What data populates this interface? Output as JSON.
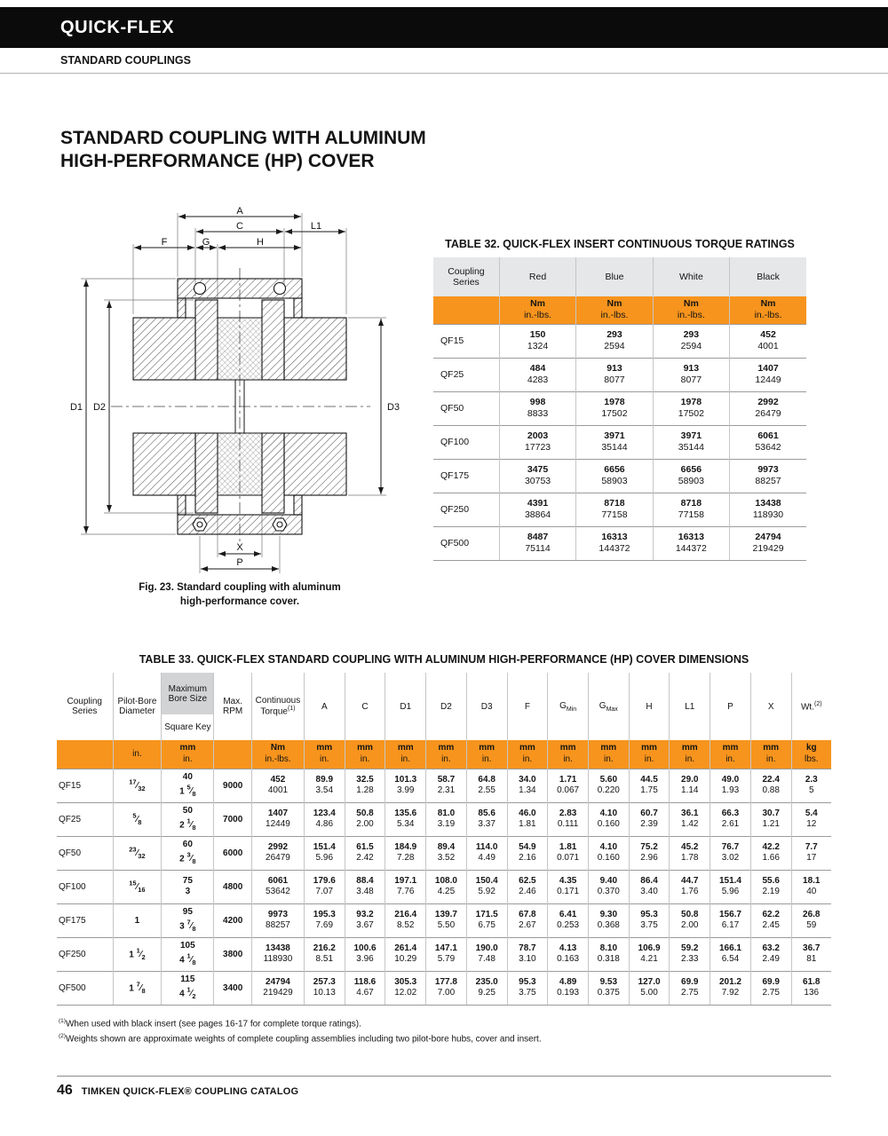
{
  "colors": {
    "accent_orange": "#F7941D",
    "header_gray": "#E6E7E8",
    "box_gray": "#D1D3D4"
  },
  "header": {
    "brand": "QUICK-FLEX",
    "section": "STANDARD COUPLINGS"
  },
  "page_title": {
    "line1": "STANDARD COUPLING WITH ALUMINUM",
    "line2": "HIGH-PERFORMANCE (HP) COVER"
  },
  "figure": {
    "caption_line1": "Fig. 23. Standard coupling with aluminum",
    "caption_line2": "high-performance cover.",
    "labels": {
      "a": "A",
      "c": "C",
      "l1": "L1",
      "f": "F",
      "g": "G",
      "h": "H",
      "d1": "D1",
      "d2": "D2",
      "d3": "D3",
      "x": "X",
      "p": "P"
    }
  },
  "table32": {
    "title": "TABLE 32. QUICK-FLEX INSERT CONTINUOUS TORQUE RATINGS",
    "series_header": "Coupling Series",
    "color_headers": [
      "Red",
      "Blue",
      "White",
      "Black"
    ],
    "unit_top": "Nm",
    "unit_bottom": "in.-lbs.",
    "rows": [
      {
        "series": "QF15",
        "values": [
          [
            "150",
            "1324"
          ],
          [
            "293",
            "2594"
          ],
          [
            "293",
            "2594"
          ],
          [
            "452",
            "4001"
          ]
        ]
      },
      {
        "series": "QF25",
        "values": [
          [
            "484",
            "4283"
          ],
          [
            "913",
            "8077"
          ],
          [
            "913",
            "8077"
          ],
          [
            "1407",
            "12449"
          ]
        ]
      },
      {
        "series": "QF50",
        "values": [
          [
            "998",
            "8833"
          ],
          [
            "1978",
            "17502"
          ],
          [
            "1978",
            "17502"
          ],
          [
            "2992",
            "26479"
          ]
        ]
      },
      {
        "series": "QF100",
        "values": [
          [
            "2003",
            "17723"
          ],
          [
            "3971",
            "35144"
          ],
          [
            "3971",
            "35144"
          ],
          [
            "6061",
            "53642"
          ]
        ]
      },
      {
        "series": "QF175",
        "values": [
          [
            "3475",
            "30753"
          ],
          [
            "6656",
            "58903"
          ],
          [
            "6656",
            "58903"
          ],
          [
            "9973",
            "88257"
          ]
        ]
      },
      {
        "series": "QF250",
        "values": [
          [
            "4391",
            "38864"
          ],
          [
            "8718",
            "77158"
          ],
          [
            "8718",
            "77158"
          ],
          [
            "13438",
            "118930"
          ]
        ]
      },
      {
        "series": "QF500",
        "values": [
          [
            "8487",
            "75114"
          ],
          [
            "16313",
            "144372"
          ],
          [
            "16313",
            "144372"
          ],
          [
            "24794",
            "219429"
          ]
        ]
      }
    ]
  },
  "table33": {
    "title": "TABLE 33. QUICK-FLEX STANDARD COUPLING WITH ALUMINUM HIGH-PERFORMANCE (HP) COVER DIMENSIONS",
    "headers": {
      "series": "Coupling Series",
      "pilot": "Pilot-Bore Diameter",
      "bore_top": "Maximum Bore Size",
      "bore_bottom": "Square Key",
      "rpm": "Max. RPM",
      "torque": "Continuous Torque",
      "torque_sup": "(1)",
      "wt": "Wt.",
      "wt_sup": "(2)"
    },
    "dim_cols": [
      {
        "label": "A"
      },
      {
        "label": "C"
      },
      {
        "label": "D1"
      },
      {
        "label": "D2"
      },
      {
        "label": "D3"
      },
      {
        "label": "F"
      },
      {
        "label": "G",
        "sub": "Min"
      },
      {
        "label": "G",
        "sub": "Max"
      },
      {
        "label": "H"
      },
      {
        "label": "L1"
      },
      {
        "label": "P"
      },
      {
        "label": "X"
      }
    ],
    "units": {
      "pilot": "in.",
      "metric": "mm",
      "imperial": "in.",
      "torque_top": "Nm",
      "torque_bottom": "in.-lbs.",
      "wt_top": "kg",
      "wt_bottom": "lbs."
    },
    "rows": [
      {
        "series": "QF15",
        "pilot_bore": "17/32",
        "max_bore_mm": "40",
        "max_bore_in": "1 5/8",
        "rpm": "9000",
        "torque": [
          "452",
          "4001"
        ],
        "dims": [
          [
            "89.9",
            "3.54"
          ],
          [
            "32.5",
            "1.28"
          ],
          [
            "101.3",
            "3.99"
          ],
          [
            "58.7",
            "2.31"
          ],
          [
            "64.8",
            "2.55"
          ],
          [
            "34.0",
            "1.34"
          ],
          [
            "1.71",
            "0.067"
          ],
          [
            "5.60",
            "0.220"
          ],
          [
            "44.5",
            "1.75"
          ],
          [
            "29.0",
            "1.14"
          ],
          [
            "49.0",
            "1.93"
          ],
          [
            "22.4",
            "0.88"
          ]
        ],
        "wt": [
          "2.3",
          "5"
        ]
      },
      {
        "series": "QF25",
        "pilot_bore": "5/8",
        "max_bore_mm": "50",
        "max_bore_in": "2 1/8",
        "rpm": "7000",
        "torque": [
          "1407",
          "12449"
        ],
        "dims": [
          [
            "123.4",
            "4.86"
          ],
          [
            "50.8",
            "2.00"
          ],
          [
            "135.6",
            "5.34"
          ],
          [
            "81.0",
            "3.19"
          ],
          [
            "85.6",
            "3.37"
          ],
          [
            "46.0",
            "1.81"
          ],
          [
            "2.83",
            "0.111"
          ],
          [
            "4.10",
            "0.160"
          ],
          [
            "60.7",
            "2.39"
          ],
          [
            "36.1",
            "1.42"
          ],
          [
            "66.3",
            "2.61"
          ],
          [
            "30.7",
            "1.21"
          ]
        ],
        "wt": [
          "5.4",
          "12"
        ]
      },
      {
        "series": "QF50",
        "pilot_bore": "23/32",
        "max_bore_mm": "60",
        "max_bore_in": "2 3/8",
        "rpm": "6000",
        "torque": [
          "2992",
          "26479"
        ],
        "dims": [
          [
            "151.4",
            "5.96"
          ],
          [
            "61.5",
            "2.42"
          ],
          [
            "184.9",
            "7.28"
          ],
          [
            "89.4",
            "3.52"
          ],
          [
            "114.0",
            "4.49"
          ],
          [
            "54.9",
            "2.16"
          ],
          [
            "1.81",
            "0.071"
          ],
          [
            "4.10",
            "0.160"
          ],
          [
            "75.2",
            "2.96"
          ],
          [
            "45.2",
            "1.78"
          ],
          [
            "76.7",
            "3.02"
          ],
          [
            "42.2",
            "1.66"
          ]
        ],
        "wt": [
          "7.7",
          "17"
        ]
      },
      {
        "series": "QF100",
        "pilot_bore": "15/16",
        "max_bore_mm": "75",
        "max_bore_in": "3",
        "rpm": "4800",
        "torque": [
          "6061",
          "53642"
        ],
        "dims": [
          [
            "179.6",
            "7.07"
          ],
          [
            "88.4",
            "3.48"
          ],
          [
            "197.1",
            "7.76"
          ],
          [
            "108.0",
            "4.25"
          ],
          [
            "150.4",
            "5.92"
          ],
          [
            "62.5",
            "2.46"
          ],
          [
            "4.35",
            "0.171"
          ],
          [
            "9.40",
            "0.370"
          ],
          [
            "86.4",
            "3.40"
          ],
          [
            "44.7",
            "1.76"
          ],
          [
            "151.4",
            "5.96"
          ],
          [
            "55.6",
            "2.19"
          ]
        ],
        "wt": [
          "18.1",
          "40"
        ]
      },
      {
        "series": "QF175",
        "pilot_bore": "1",
        "max_bore_mm": "95",
        "max_bore_in": "3 7/8",
        "rpm": "4200",
        "torque": [
          "9973",
          "88257"
        ],
        "dims": [
          [
            "195.3",
            "7.69"
          ],
          [
            "93.2",
            "3.67"
          ],
          [
            "216.4",
            "8.52"
          ],
          [
            "139.7",
            "5.50"
          ],
          [
            "171.5",
            "6.75"
          ],
          [
            "67.8",
            "2.67"
          ],
          [
            "6.41",
            "0.253"
          ],
          [
            "9.30",
            "0.368"
          ],
          [
            "95.3",
            "3.75"
          ],
          [
            "50.8",
            "2.00"
          ],
          [
            "156.7",
            "6.17"
          ],
          [
            "62.2",
            "2.45"
          ]
        ],
        "wt": [
          "26.8",
          "59"
        ]
      },
      {
        "series": "QF250",
        "pilot_bore": "1 1/2",
        "max_bore_mm": "105",
        "max_bore_in": "4 1/8",
        "rpm": "3800",
        "torque": [
          "13438",
          "118930"
        ],
        "dims": [
          [
            "216.2",
            "8.51"
          ],
          [
            "100.6",
            "3.96"
          ],
          [
            "261.4",
            "10.29"
          ],
          [
            "147.1",
            "5.79"
          ],
          [
            "190.0",
            "7.48"
          ],
          [
            "78.7",
            "3.10"
          ],
          [
            "4.13",
            "0.163"
          ],
          [
            "8.10",
            "0.318"
          ],
          [
            "106.9",
            "4.21"
          ],
          [
            "59.2",
            "2.33"
          ],
          [
            "166.1",
            "6.54"
          ],
          [
            "63.2",
            "2.49"
          ]
        ],
        "wt": [
          "36.7",
          "81"
        ]
      },
      {
        "series": "QF500",
        "pilot_bore": "1 7/8",
        "max_bore_mm": "115",
        "max_bore_in": "4 1/2",
        "rpm": "3400",
        "torque": [
          "24794",
          "219429"
        ],
        "dims": [
          [
            "257.3",
            "10.13"
          ],
          [
            "118.6",
            "4.67"
          ],
          [
            "305.3",
            "12.02"
          ],
          [
            "177.8",
            "7.00"
          ],
          [
            "235.0",
            "9.25"
          ],
          [
            "95.3",
            "3.75"
          ],
          [
            "4.89",
            "0.193"
          ],
          [
            "9.53",
            "0.375"
          ],
          [
            "127.0",
            "5.00"
          ],
          [
            "69.9",
            "2.75"
          ],
          [
            "201.2",
            "7.92"
          ],
          [
            "69.9",
            "2.75"
          ]
        ],
        "wt": [
          "61.8",
          "136"
        ]
      }
    ]
  },
  "footnotes": [
    {
      "sup": "(1)",
      "text": "When used with black insert (see pages 16-17 for complete torque ratings)."
    },
    {
      "sup": "(2)",
      "text": "Weights shown are approximate weights of complete coupling assemblies including two pilot-bore hubs, cover and insert."
    }
  ],
  "footer": {
    "page_number": "46",
    "text": "TIMKEN QUICK-FLEX® COUPLING CATALOG"
  }
}
